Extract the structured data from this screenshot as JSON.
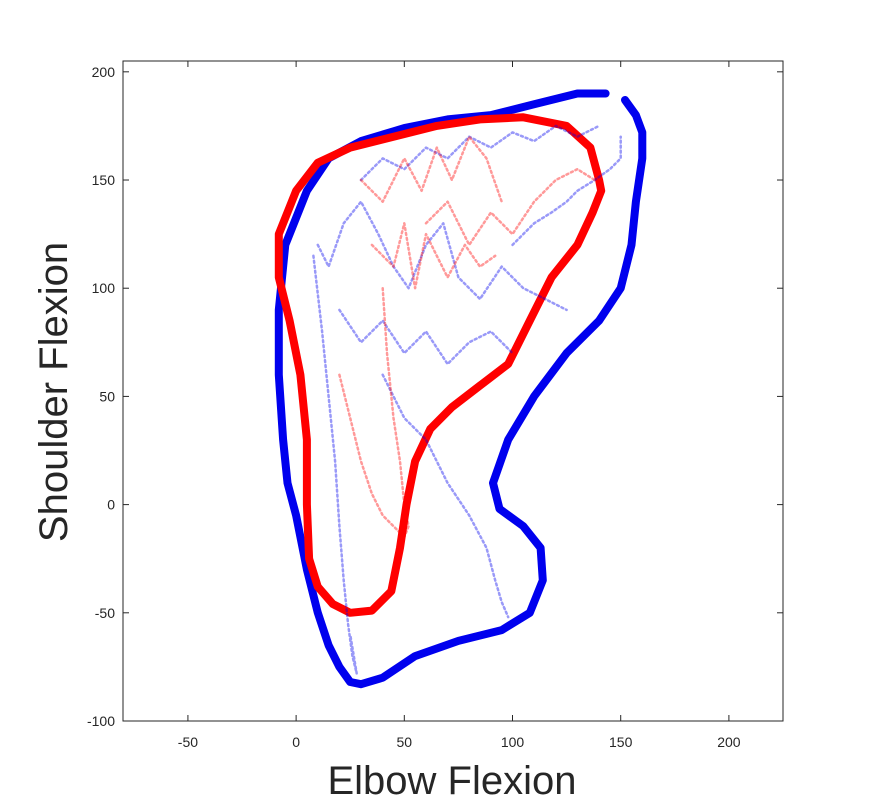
{
  "chart_data": {
    "type": "line",
    "title": "",
    "xlabel": "Elbow Flexion",
    "ylabel": "Shoulder Flexion",
    "xlim": [
      -80,
      225
    ],
    "ylim": [
      -100,
      205
    ],
    "xticks": [
      -50,
      0,
      50,
      100,
      150,
      200
    ],
    "yticks": [
      -100,
      -50,
      0,
      50,
      100,
      150,
      200
    ],
    "grid": false,
    "legend": "none",
    "colors": {
      "blue": "#0000ee",
      "red": "#ff0000"
    },
    "series": [
      {
        "color": "#0000ee",
        "style": "boundary",
        "x": [
          143,
          130,
          110,
          90,
          70,
          50,
          30,
          15,
          5,
          -5,
          -8,
          -8,
          -6,
          -4,
          0,
          5,
          10,
          15,
          20,
          25,
          30,
          40,
          55,
          75,
          95,
          108,
          114,
          113,
          105,
          94,
          91,
          98,
          110,
          125,
          140,
          150,
          155,
          157,
          160,
          160,
          157,
          152
        ],
        "y": [
          190,
          190,
          185,
          180,
          178,
          174,
          168,
          160,
          145,
          120,
          90,
          60,
          30,
          10,
          -5,
          -30,
          -50,
          -65,
          -75,
          -82,
          -83,
          -80,
          -70,
          -63,
          -58,
          -50,
          -35,
          -20,
          -10,
          -2,
          10,
          30,
          50,
          70,
          85,
          100,
          120,
          140,
          160,
          172,
          180,
          187
        ]
      },
      {
        "color": "#ff0000",
        "style": "boundary",
        "x": [
          140,
          136,
          125,
          105,
          85,
          65,
          45,
          25,
          10,
          0,
          -8,
          -8,
          -3,
          2,
          5,
          5,
          6,
          10,
          17,
          25,
          35,
          44,
          48,
          51,
          55,
          62,
          72,
          85,
          98,
          108,
          118,
          130,
          137,
          141,
          140
        ],
        "y": [
          150,
          165,
          175,
          179,
          178,
          175,
          170,
          165,
          158,
          145,
          125,
          105,
          85,
          60,
          30,
          0,
          -25,
          -38,
          -46,
          -50,
          -49,
          -40,
          -20,
          0,
          20,
          35,
          45,
          55,
          65,
          85,
          105,
          120,
          135,
          145,
          150
        ]
      },
      {
        "color": "#0000ee",
        "style": "trace",
        "x": [
          10,
          15,
          22,
          30,
          38,
          45,
          52,
          60,
          68,
          75,
          85,
          95,
          105,
          115,
          125
        ],
        "y": [
          120,
          110,
          130,
          140,
          125,
          110,
          100,
          120,
          130,
          105,
          95,
          110,
          100,
          95,
          90
        ]
      },
      {
        "color": "#0000ee",
        "style": "trace",
        "x": [
          8,
          12,
          15,
          18,
          20,
          22,
          24,
          26,
          28,
          25
        ],
        "y": [
          115,
          80,
          50,
          20,
          -10,
          -35,
          -55,
          -70,
          -78,
          -60
        ]
      },
      {
        "color": "#0000ee",
        "style": "trace",
        "x": [
          20,
          30,
          40,
          50,
          60,
          70,
          80,
          90,
          100
        ],
        "y": [
          90,
          75,
          85,
          70,
          80,
          65,
          75,
          80,
          70
        ]
      },
      {
        "color": "#0000ee",
        "style": "trace",
        "x": [
          30,
          40,
          50,
          60,
          70,
          80,
          90,
          100,
          110,
          120,
          130,
          140
        ],
        "y": [
          150,
          160,
          155,
          165,
          160,
          170,
          165,
          172,
          168,
          175,
          170,
          175
        ]
      },
      {
        "color": "#0000ee",
        "style": "trace",
        "x": [
          40,
          50,
          60,
          70,
          80,
          88,
          92,
          95,
          98
        ],
        "y": [
          60,
          40,
          30,
          10,
          -5,
          -20,
          -35,
          -45,
          -52
        ]
      },
      {
        "color": "#0000ee",
        "style": "trace",
        "x": [
          100,
          105,
          110,
          118,
          125,
          130,
          138,
          145,
          150,
          150
        ],
        "y": [
          120,
          125,
          130,
          135,
          140,
          145,
          150,
          155,
          160,
          170
        ]
      },
      {
        "color": "#ff0000",
        "style": "trace",
        "x": [
          30,
          40,
          50,
          58,
          65,
          72,
          80,
          88,
          95
        ],
        "y": [
          150,
          140,
          160,
          145,
          165,
          150,
          170,
          160,
          140
        ]
      },
      {
        "color": "#ff0000",
        "style": "trace",
        "x": [
          35,
          45,
          50,
          55,
          60,
          65,
          70,
          78,
          85,
          92
        ],
        "y": [
          120,
          110,
          130,
          100,
          125,
          115,
          105,
          120,
          110,
          115
        ]
      },
      {
        "color": "#ff0000",
        "style": "trace",
        "x": [
          40,
          42,
          45,
          48,
          50,
          52,
          50,
          48
        ],
        "y": [
          100,
          70,
          40,
          20,
          0,
          -10,
          -15,
          -12
        ]
      },
      {
        "color": "#ff0000",
        "style": "trace",
        "x": [
          60,
          70,
          80,
          90,
          100,
          110,
          120,
          130,
          138
        ],
        "y": [
          130,
          140,
          120,
          135,
          125,
          140,
          150,
          155,
          150
        ]
      },
      {
        "color": "#ff0000",
        "style": "trace",
        "x": [
          20,
          25,
          30,
          35,
          40,
          45,
          50
        ],
        "y": [
          60,
          40,
          20,
          5,
          -5,
          -10,
          -15
        ]
      }
    ]
  }
}
